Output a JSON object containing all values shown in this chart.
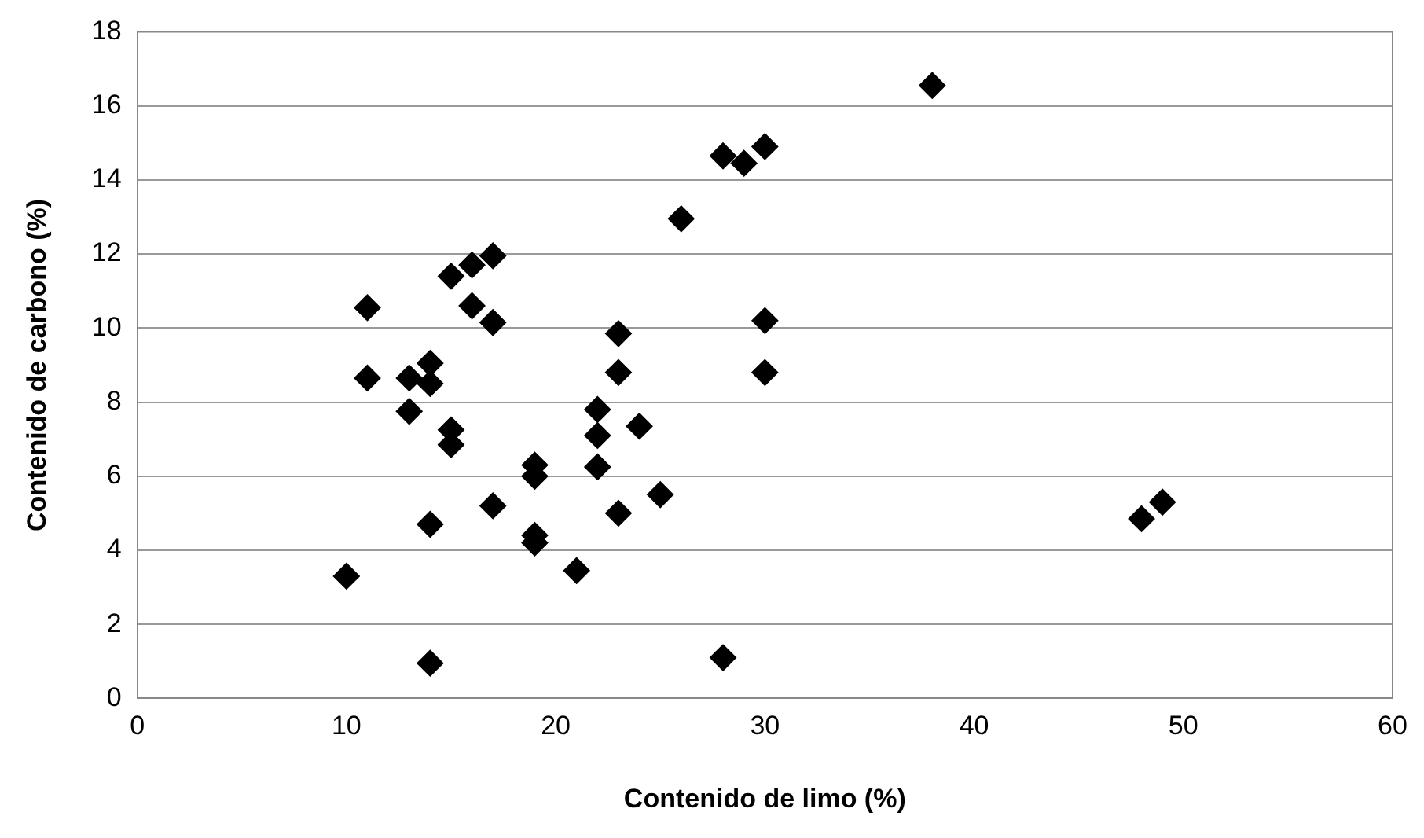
{
  "chart_data": {
    "type": "scatter",
    "xlabel": "Contenido de limo (%)",
    "ylabel": "Contenido de carbono (%)",
    "x": [
      10,
      11,
      11,
      13,
      13,
      14,
      14,
      14,
      14,
      15,
      15,
      15,
      16,
      16,
      17,
      17,
      17,
      19,
      19,
      19,
      19,
      21,
      22,
      22,
      22,
      23,
      23,
      23,
      24,
      25,
      26,
      28,
      28,
      29,
      30,
      30,
      30,
      38,
      48,
      49
    ],
    "series": [
      {
        "color": "#000000",
        "values": [
          3.3,
          10.55,
          8.65,
          8.65,
          7.75,
          9.05,
          8.5,
          4.7,
          0.95,
          11.4,
          7.25,
          6.85,
          11.7,
          10.6,
          11.95,
          10.15,
          5.2,
          6.3,
          6.0,
          4.4,
          4.2,
          3.45,
          7.8,
          7.1,
          6.25,
          9.85,
          8.8,
          5.0,
          7.35,
          5.5,
          12.95,
          14.65,
          1.1,
          14.45,
          14.9,
          10.2,
          8.8,
          16.55,
          4.85,
          5.3
        ]
      }
    ],
    "xlim": [
      0,
      60
    ],
    "xticks": [
      0,
      10,
      20,
      30,
      40,
      50,
      60
    ],
    "ylim": [
      0,
      18
    ],
    "yticks": [
      0,
      2,
      4,
      6,
      8,
      10,
      12,
      14,
      16,
      18
    ],
    "grid": "y",
    "marker": "diamond",
    "legend": false
  }
}
